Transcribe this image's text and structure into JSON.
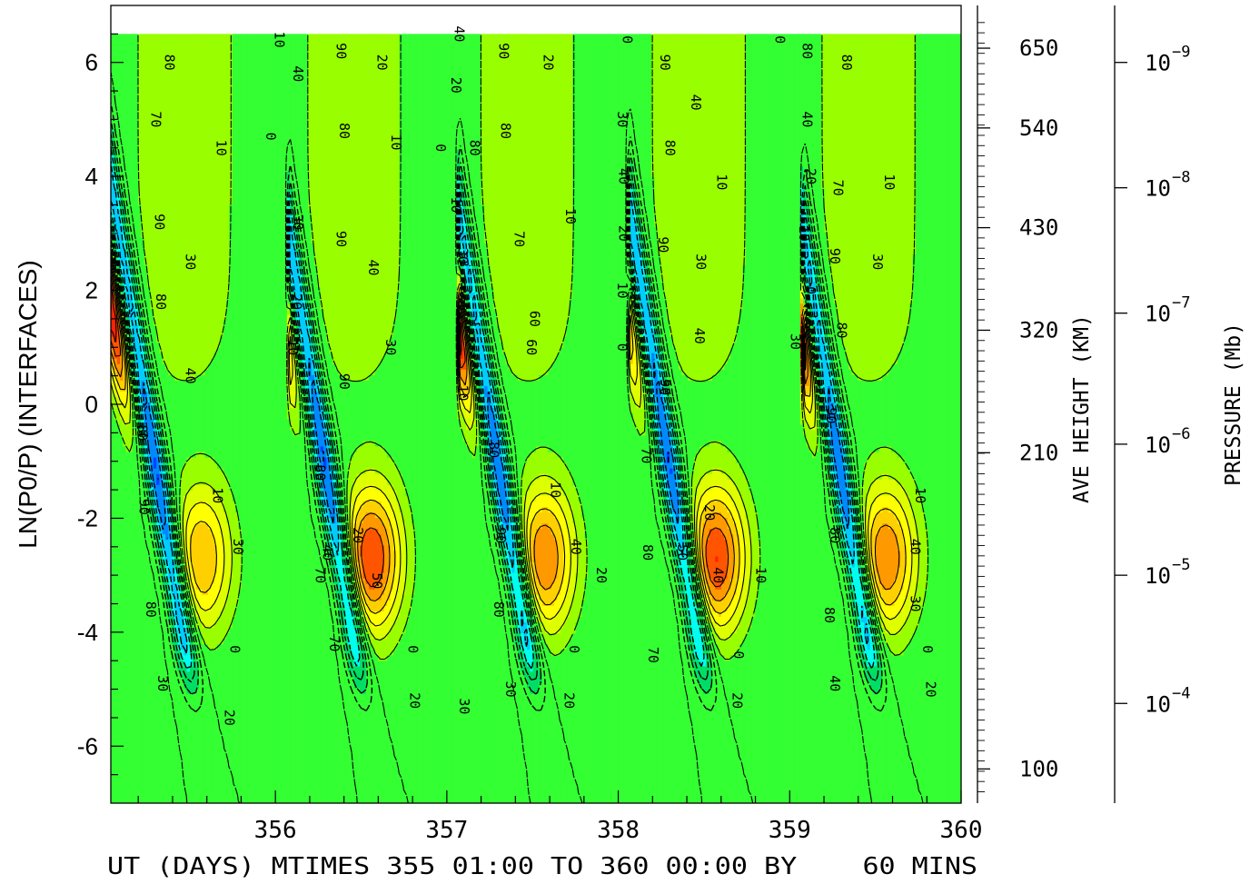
{
  "chart_data": {
    "type": "heatmap",
    "title": "",
    "xlabel": "UT (DAYS) MTIMES 355 01:00 TO 360 00:00 BY    60 MINS",
    "ylabel": "LN(P0/P) (INTERFACES)",
    "right_axis_1_label": "AVE HEIGHT (KM)",
    "right_axis_2_label": "PRESSURE (Mb)",
    "xlim": [
      355.04,
      360.0
    ],
    "ylim": [
      -7,
      7
    ],
    "x_ticks": [
      356,
      357,
      358,
      359,
      360
    ],
    "x_tick_labels": [
      "356",
      "357",
      "358",
      "359",
      "360"
    ],
    "y_ticks": [
      6,
      4,
      2,
      0,
      -2,
      -4,
      -6
    ],
    "y_tick_labels": [
      "6",
      "4",
      "2",
      "0",
      "-2",
      "-4",
      "-6"
    ],
    "height_ticks": [
      {
        "lev": 6.25,
        "label": "650"
      },
      {
        "lev": 4.85,
        "label": "540"
      },
      {
        "lev": 3.1,
        "label": "430"
      },
      {
        "lev": 1.3,
        "label": "320"
      },
      {
        "lev": -0.85,
        "label": "210"
      },
      {
        "lev": -6.4,
        "label": "100"
      }
    ],
    "pressure_ticks": [
      {
        "lev": 6.0,
        "mant": "10",
        "exp": "−9"
      },
      {
        "lev": 3.8,
        "mant": "10",
        "exp": "−8"
      },
      {
        "lev": 1.6,
        "mant": "10",
        "exp": "−7"
      },
      {
        "lev": -0.7,
        "mant": "10",
        "exp": "−6"
      },
      {
        "lev": -3.0,
        "mant": "10",
        "exp": "−5"
      },
      {
        "lev": -5.25,
        "mant": "10",
        "exp": "−4"
      }
    ],
    "data_top_lev": 6.5,
    "phases": [
      355.57,
      356.56,
      357.57,
      358.57,
      359.56
    ],
    "upper_max": [
      70,
      40,
      80,
      40,
      80
    ],
    "lower_max": [
      30,
      50,
      40,
      50,
      40
    ],
    "color_scale": [
      {
        "v": -50,
        "c": "#00e000"
      },
      {
        "v": -40,
        "c": "#00ee00"
      },
      {
        "v": -30,
        "c": "#22f030"
      },
      {
        "v": -20,
        "c": "#33ff33"
      },
      {
        "v": -10,
        "c": "#99ff00"
      },
      {
        "v": 0,
        "c": "#ddff00"
      },
      {
        "v": 10,
        "c": "#ffff00"
      },
      {
        "v": 20,
        "c": "#ffd000"
      },
      {
        "v": 30,
        "c": "#ff9900"
      },
      {
        "v": 40,
        "c": "#ff5500"
      },
      {
        "v": 50,
        "c": "#ff2200"
      },
      {
        "v": 60,
        "c": "#ff0033"
      },
      {
        "v": 70,
        "c": "#cc0000"
      },
      {
        "v": 80,
        "c": "#800000"
      },
      {
        "v": 90,
        "c": "#ff00cc"
      }
    ],
    "neg_color_scale": [
      {
        "v": -20,
        "c": "#33ff33"
      },
      {
        "v": -40,
        "c": "#00dd66"
      },
      {
        "v": -60,
        "c": "#00ffee"
      },
      {
        "v": -70,
        "c": "#00ccff"
      },
      {
        "v": -80,
        "c": "#0088ff"
      },
      {
        "v": -90,
        "c": "#0044ff"
      },
      {
        "v": -100,
        "c": "#0000dd"
      }
    ],
    "contour_labels": [
      {
        "x": 355.38,
        "lev": 6.0,
        "t": "80"
      },
      {
        "x": 355.68,
        "lev": 4.5,
        "t": "10"
      },
      {
        "x": 355.3,
        "lev": 5.0,
        "t": "70"
      },
      {
        "x": 355.97,
        "lev": 4.7,
        "t": "0"
      },
      {
        "x": 355.32,
        "lev": 3.2,
        "t": "90"
      },
      {
        "x": 355.5,
        "lev": 2.5,
        "t": "30"
      },
      {
        "x": 355.33,
        "lev": 1.8,
        "t": "80"
      },
      {
        "x": 355.5,
        "lev": 0.5,
        "t": "40"
      },
      {
        "x": 355.22,
        "lev": -0.5,
        "t": "80"
      },
      {
        "x": 355.23,
        "lev": -1.8,
        "t": "90"
      },
      {
        "x": 355.66,
        "lev": -1.6,
        "t": "10"
      },
      {
        "x": 355.78,
        "lev": -2.5,
        "t": "30"
      },
      {
        "x": 355.27,
        "lev": -3.6,
        "t": "80"
      },
      {
        "x": 355.76,
        "lev": -4.3,
        "t": "0"
      },
      {
        "x": 355.34,
        "lev": -4.9,
        "t": "30"
      },
      {
        "x": 355.73,
        "lev": -5.5,
        "t": "20"
      },
      {
        "x": 356.02,
        "lev": 6.4,
        "t": "10"
      },
      {
        "x": 356.13,
        "lev": 5.8,
        "t": "40"
      },
      {
        "x": 356.38,
        "lev": 6.2,
        "t": "90"
      },
      {
        "x": 356.62,
        "lev": 6.0,
        "t": "20"
      },
      {
        "x": 356.4,
        "lev": 4.8,
        "t": "80"
      },
      {
        "x": 356.7,
        "lev": 4.6,
        "t": "10"
      },
      {
        "x": 356.13,
        "lev": 3.2,
        "t": "30"
      },
      {
        "x": 356.38,
        "lev": 2.9,
        "t": "90"
      },
      {
        "x": 356.57,
        "lev": 2.4,
        "t": "40"
      },
      {
        "x": 356.12,
        "lev": 1.8,
        "t": "20"
      },
      {
        "x": 356.1,
        "lev": 1.0,
        "t": "10"
      },
      {
        "x": 356.67,
        "lev": 1.0,
        "t": "30"
      },
      {
        "x": 356.4,
        "lev": 0.4,
        "t": "90"
      },
      {
        "x": 356.26,
        "lev": -1.2,
        "t": "80"
      },
      {
        "x": 356.48,
        "lev": -2.3,
        "t": "20"
      },
      {
        "x": 356.49,
        "lev": -2.3,
        "t": ""
      },
      {
        "x": 356.3,
        "lev": -2.6,
        "t": "40"
      },
      {
        "x": 356.59,
        "lev": -3.1,
        "t": "50"
      },
      {
        "x": 356.26,
        "lev": -3.0,
        "t": "70"
      },
      {
        "x": 356.34,
        "lev": -4.2,
        "t": "70"
      },
      {
        "x": 356.8,
        "lev": -4.3,
        "t": "0"
      },
      {
        "x": 356.81,
        "lev": -5.2,
        "t": "20"
      },
      {
        "x": 357.07,
        "lev": 6.5,
        "t": "40"
      },
      {
        "x": 357.33,
        "lev": 6.2,
        "t": "90"
      },
      {
        "x": 357.59,
        "lev": 6.0,
        "t": "20"
      },
      {
        "x": 357.05,
        "lev": 5.6,
        "t": "20"
      },
      {
        "x": 357.34,
        "lev": 4.8,
        "t": "80"
      },
      {
        "x": 357.16,
        "lev": 4.5,
        "t": "80"
      },
      {
        "x": 356.96,
        "lev": 4.5,
        "t": "0"
      },
      {
        "x": 357.72,
        "lev": 3.3,
        "t": "10"
      },
      {
        "x": 357.05,
        "lev": 3.5,
        "t": "10"
      },
      {
        "x": 357.42,
        "lev": 2.9,
        "t": "70"
      },
      {
        "x": 357.09,
        "lev": 2.6,
        "t": "30"
      },
      {
        "x": 357.51,
        "lev": 1.5,
        "t": "60"
      },
      {
        "x": 357.49,
        "lev": 1.0,
        "t": "60"
      },
      {
        "x": 357.09,
        "lev": 0.2,
        "t": "10"
      },
      {
        "x": 357.27,
        "lev": -0.8,
        "t": "80"
      },
      {
        "x": 357.63,
        "lev": -1.5,
        "t": "10"
      },
      {
        "x": 357.31,
        "lev": -2.3,
        "t": "90"
      },
      {
        "x": 357.75,
        "lev": -2.5,
        "t": "40"
      },
      {
        "x": 357.9,
        "lev": -3.0,
        "t": "20"
      },
      {
        "x": 357.3,
        "lev": -3.6,
        "t": "80"
      },
      {
        "x": 357.74,
        "lev": -4.3,
        "t": "0"
      },
      {
        "x": 357.1,
        "lev": -5.3,
        "t": "30"
      },
      {
        "x": 357.37,
        "lev": -5.0,
        "t": "30"
      },
      {
        "x": 357.71,
        "lev": -5.2,
        "t": "20"
      },
      {
        "x": 358.05,
        "lev": 6.4,
        "t": "0"
      },
      {
        "x": 358.27,
        "lev": 6.0,
        "t": "90"
      },
      {
        "x": 358.45,
        "lev": 5.3,
        "t": "40"
      },
      {
        "x": 358.02,
        "lev": 5.0,
        "t": "30"
      },
      {
        "x": 358.3,
        "lev": 4.5,
        "t": "80"
      },
      {
        "x": 358.6,
        "lev": 3.9,
        "t": "10"
      },
      {
        "x": 358.03,
        "lev": 4.0,
        "t": "40"
      },
      {
        "x": 358.03,
        "lev": 3.0,
        "t": "20"
      },
      {
        "x": 358.26,
        "lev": 2.8,
        "t": "90"
      },
      {
        "x": 358.48,
        "lev": 2.5,
        "t": "30"
      },
      {
        "x": 358.02,
        "lev": 2.0,
        "t": "10"
      },
      {
        "x": 358.47,
        "lev": 1.2,
        "t": "40"
      },
      {
        "x": 358.02,
        "lev": 1.0,
        "t": "0"
      },
      {
        "x": 358.27,
        "lev": 0.3,
        "t": "90"
      },
      {
        "x": 358.16,
        "lev": -0.9,
        "t": "70"
      },
      {
        "x": 358.53,
        "lev": -1.9,
        "t": "20"
      },
      {
        "x": 358.37,
        "lev": -2.6,
        "t": "50"
      },
      {
        "x": 358.17,
        "lev": -2.6,
        "t": "80"
      },
      {
        "x": 358.58,
        "lev": -3.0,
        "t": "40"
      },
      {
        "x": 358.83,
        "lev": -3.0,
        "t": "10"
      },
      {
        "x": 358.2,
        "lev": -4.4,
        "t": "70"
      },
      {
        "x": 358.7,
        "lev": -4.4,
        "t": "0"
      },
      {
        "x": 358.69,
        "lev": -5.2,
        "t": "20"
      },
      {
        "x": 358.94,
        "lev": 6.4,
        "t": "0"
      },
      {
        "x": 359.1,
        "lev": 6.2,
        "t": "80"
      },
      {
        "x": 359.33,
        "lev": 6.0,
        "t": "80"
      },
      {
        "x": 359.1,
        "lev": 5.0,
        "t": "40"
      },
      {
        "x": 359.12,
        "lev": 4.0,
        "t": "20"
      },
      {
        "x": 359.28,
        "lev": 3.8,
        "t": "70"
      },
      {
        "x": 359.58,
        "lev": 3.9,
        "t": "10"
      },
      {
        "x": 359.08,
        "lev": 3.0,
        "t": "10"
      },
      {
        "x": 359.26,
        "lev": 2.6,
        "t": "90"
      },
      {
        "x": 359.51,
        "lev": 2.5,
        "t": "30"
      },
      {
        "x": 359.12,
        "lev": 2.0,
        "t": "0"
      },
      {
        "x": 359.3,
        "lev": 1.3,
        "t": "80"
      },
      {
        "x": 359.03,
        "lev": 1.1,
        "t": "30"
      },
      {
        "x": 359.24,
        "lev": -0.2,
        "t": "90"
      },
      {
        "x": 359.26,
        "lev": -2.3,
        "t": "80"
      },
      {
        "x": 359.76,
        "lev": -1.6,
        "t": "10"
      },
      {
        "x": 359.73,
        "lev": -2.5,
        "t": "40"
      },
      {
        "x": 359.73,
        "lev": -3.5,
        "t": "30"
      },
      {
        "x": 359.23,
        "lev": -3.7,
        "t": "80"
      },
      {
        "x": 359.8,
        "lev": -4.3,
        "t": "0"
      },
      {
        "x": 359.26,
        "lev": -4.9,
        "t": "40"
      },
      {
        "x": 359.82,
        "lev": -5.0,
        "t": "20"
      }
    ]
  }
}
